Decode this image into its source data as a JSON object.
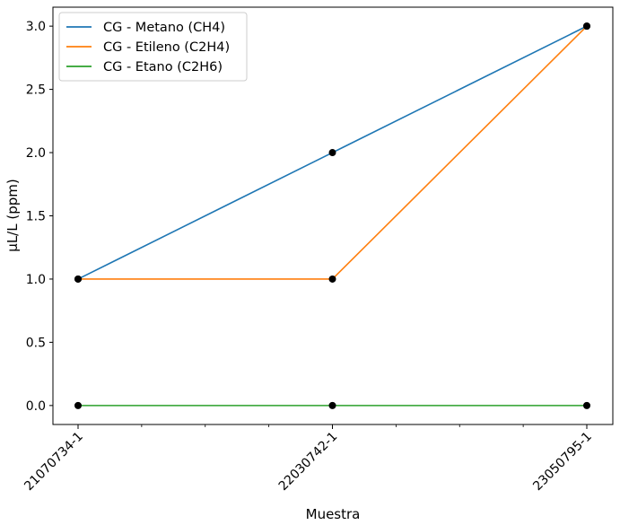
{
  "chart_data": {
    "type": "line",
    "categories": [
      "21070734-1",
      "22030742-1",
      "23050795-1"
    ],
    "series": [
      {
        "name": "CG - Metano (CH4)",
        "values": [
          1,
          2,
          3
        ],
        "color": "#1f77b4"
      },
      {
        "name": "CG - Etileno (C2H4)",
        "values": [
          1,
          1,
          3
        ],
        "color": "#ff7f0e"
      },
      {
        "name": "CG - Etano (C2H6)",
        "values": [
          0,
          0,
          0
        ],
        "color": "#2ca02c"
      }
    ],
    "marker_color": "#000000",
    "xlabel": "Muestra",
    "ylabel": "µL/L (ppm)",
    "ylim": [
      -0.15,
      3.15
    ],
    "yticks": [
      "0.0",
      "0.5",
      "1.0",
      "1.5",
      "2.0",
      "2.5",
      "3.0"
    ],
    "grid": false,
    "legend_position": "top-left"
  }
}
